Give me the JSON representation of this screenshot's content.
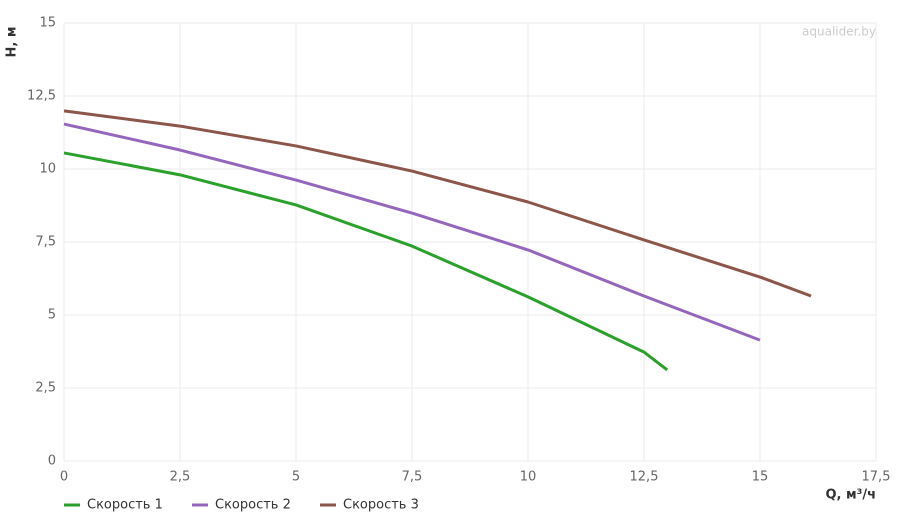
{
  "chart_data": {
    "type": "line",
    "watermark": "aqualider.by",
    "xlabel": "Q, м³/ч",
    "ylabel": "H, м",
    "xlim": [
      0,
      17.5
    ],
    "ylim": [
      0,
      15
    ],
    "xticks": [
      0,
      {
        "value": 2.5,
        "label": "2,5"
      },
      5,
      {
        "value": 7.5,
        "label": "7,5"
      },
      10,
      {
        "value": 12.5,
        "label": "12,5"
      },
      15,
      {
        "value": 17.5,
        "label": "17,5"
      }
    ],
    "yticks": [
      0,
      {
        "value": 2.5,
        "label": "2,5"
      },
      5,
      {
        "value": 7.5,
        "label": "7,5"
      },
      10,
      {
        "value": 12.5,
        "label": "12,5"
      },
      15
    ],
    "grid": true,
    "legend": "bottom-left",
    "series": [
      {
        "name": "Скорость 1",
        "color": "#2ca02c",
        "x": [
          0,
          2.5,
          5,
          7.5,
          10,
          12.5,
          13
        ],
        "values": [
          10.55,
          9.8,
          8.77,
          7.36,
          5.62,
          3.73,
          3.12
        ]
      },
      {
        "name": "Скорость 2",
        "color": "#9467bd",
        "x": [
          0,
          2.5,
          5,
          7.5,
          10,
          12.5,
          15
        ],
        "values": [
          11.54,
          10.65,
          9.62,
          8.49,
          7.23,
          5.65,
          4.14
        ]
      },
      {
        "name": "Скорость 3",
        "color": "#8c564b",
        "x": [
          0,
          2.5,
          5,
          7.5,
          10,
          12.5,
          15,
          16.1
        ],
        "values": [
          11.99,
          11.47,
          10.79,
          9.93,
          8.87,
          7.57,
          6.3,
          5.65
        ]
      }
    ]
  }
}
